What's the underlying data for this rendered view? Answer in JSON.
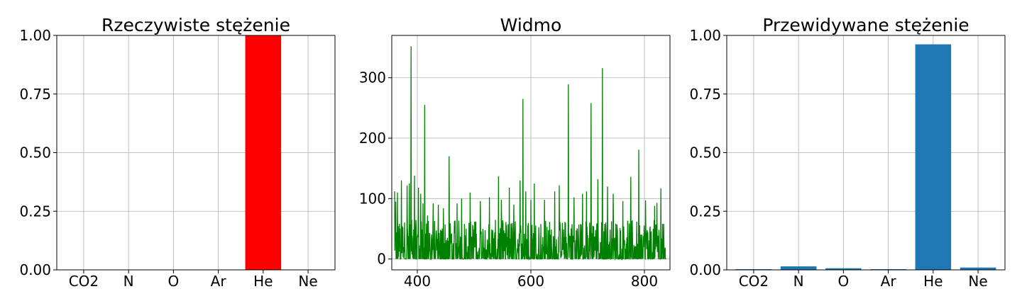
{
  "chart_data": [
    {
      "type": "bar",
      "title": "Rzeczywiste stężenie",
      "categories": [
        "CO2",
        "N",
        "O",
        "Ar",
        "He",
        "Ne"
      ],
      "values": [
        0,
        0,
        0,
        0,
        1.0,
        0
      ],
      "ylim": [
        0,
        1
      ],
      "yticks": [
        "0.00",
        "0.25",
        "0.50",
        "0.75",
        "1.00"
      ],
      "color": "#ff0000",
      "grid": true
    },
    {
      "type": "line",
      "title": "Widmo",
      "xlim": [
        355,
        845
      ],
      "ylim": [
        -18,
        370
      ],
      "xticks": [
        "400",
        "600",
        "800"
      ],
      "yticks": [
        "0",
        "100",
        "200",
        "300"
      ],
      "color": "#008000",
      "grid": true,
      "x_range": [
        360,
        838
      ],
      "peaks": [
        [
          360,
          112
        ],
        [
          362,
          95
        ],
        [
          365,
          110
        ],
        [
          372,
          130
        ],
        [
          382,
          122
        ],
        [
          386,
          125
        ],
        [
          389,
          352
        ],
        [
          395,
          138
        ],
        [
          402,
          118
        ],
        [
          406,
          108
        ],
        [
          410,
          92
        ],
        [
          413,
          255
        ],
        [
          418,
          72
        ],
        [
          428,
          92
        ],
        [
          437,
          90
        ],
        [
          446,
          84
        ],
        [
          456,
          170
        ],
        [
          470,
          92
        ],
        [
          478,
          100
        ],
        [
          493,
          110
        ],
        [
          511,
          96
        ],
        [
          527,
          102
        ],
        [
          543,
          137
        ],
        [
          548,
          98
        ],
        [
          562,
          118
        ],
        [
          570,
          90
        ],
        [
          581,
          130
        ],
        [
          586,
          265
        ],
        [
          591,
          112
        ],
        [
          600,
          98
        ],
        [
          606,
          125
        ],
        [
          624,
          98
        ],
        [
          642,
          112
        ],
        [
          650,
          122
        ],
        [
          666,
          289
        ],
        [
          676,
          102
        ],
        [
          691,
          108
        ],
        [
          698,
          112
        ],
        [
          706,
          258
        ],
        [
          718,
          132
        ],
        [
          726,
          316
        ],
        [
          735,
          120
        ],
        [
          745,
          108
        ],
        [
          762,
          96
        ],
        [
          776,
          136
        ],
        [
          790,
          181
        ],
        [
          802,
          97
        ],
        [
          818,
          88
        ],
        [
          822,
          93
        ],
        [
          829,
          117
        ],
        [
          834,
          58
        ]
      ],
      "baseline_max": 65
    },
    {
      "type": "bar",
      "title": "Przewidywane stężenie",
      "categories": [
        "CO2",
        "N",
        "O",
        "Ar",
        "He",
        "Ne"
      ],
      "values": [
        0.003,
        0.015,
        0.007,
        0.003,
        0.962,
        0.01
      ],
      "ylim": [
        0,
        1
      ],
      "yticks": [
        "0.00",
        "0.25",
        "0.50",
        "0.75",
        "1.00"
      ],
      "color": "#1f77b4",
      "grid": true
    }
  ]
}
